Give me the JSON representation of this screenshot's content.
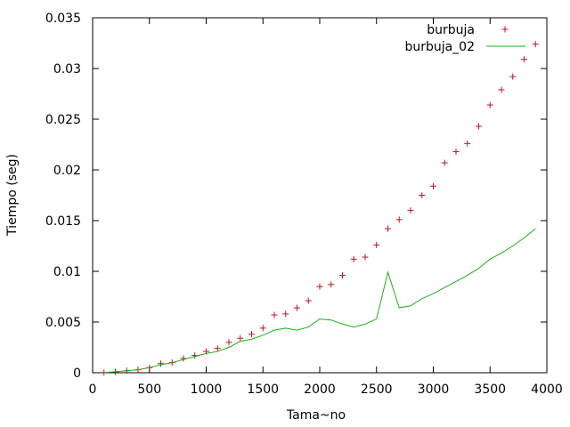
{
  "chart_data": {
    "type": "scatter",
    "xlabel": "Tama~no",
    "ylabel": "Tiempo (seg)",
    "xlim": [
      0,
      4000
    ],
    "ylim": [
      0,
      0.035
    ],
    "xticks": [
      0,
      500,
      1000,
      1500,
      2000,
      2500,
      3000,
      3500,
      4000
    ],
    "xtick_labels": [
      "0",
      "500",
      "1000",
      "1500",
      "2000",
      "2500",
      "3000",
      "3500",
      "4000"
    ],
    "yticks": [
      0,
      0.005,
      0.01,
      0.015,
      0.02,
      0.025,
      0.03,
      0.035
    ],
    "ytick_labels": [
      "0",
      "0.005",
      "0.01",
      "0.015",
      "0.02",
      "0.025",
      "0.03",
      "0.035"
    ],
    "grid": false,
    "legend_position": "top-right",
    "series": [
      {
        "name": "burbuja",
        "style": "points",
        "marker": "+",
        "color": "#c0141c",
        "x": [
          100,
          200,
          300,
          400,
          500,
          600,
          700,
          800,
          900,
          1000,
          1100,
          1200,
          1300,
          1400,
          1500,
          1600,
          1700,
          1800,
          1900,
          2000,
          2100,
          2200,
          2300,
          2400,
          2500,
          2600,
          2700,
          2800,
          2900,
          3000,
          3100,
          3200,
          3300,
          3400,
          3500,
          3600,
          3700,
          3800,
          3900
        ],
        "y": [
          2e-05,
          9e-05,
          0.0002,
          0.0003,
          0.0005,
          0.0009,
          0.001,
          0.0014,
          0.0017,
          0.0021,
          0.0024,
          0.003,
          0.0034,
          0.0038,
          0.0044,
          0.0057,
          0.0058,
          0.0064,
          0.0071,
          0.0085,
          0.0087,
          0.0096,
          0.0112,
          0.0114,
          0.0126,
          0.0142,
          0.0151,
          0.016,
          0.0175,
          0.0184,
          0.0207,
          0.0218,
          0.0226,
          0.0243,
          0.0264,
          0.0279,
          0.0292,
          0.0309,
          0.0324
        ]
      },
      {
        "name": "burbuja_02",
        "style": "line",
        "color": "#1bb01b",
        "x": [
          100,
          200,
          300,
          400,
          500,
          600,
          700,
          800,
          900,
          1000,
          1100,
          1200,
          1300,
          1400,
          1500,
          1600,
          1700,
          1800,
          1900,
          2000,
          2100,
          2200,
          2300,
          2400,
          2500,
          2600,
          2700,
          2800,
          2900,
          3000,
          3100,
          3200,
          3300,
          3400,
          3500,
          3600,
          3700,
          3800,
          3900
        ],
        "y": [
          2e-05,
          0.0001,
          0.0002,
          0.0003,
          0.0005,
          0.0008,
          0.001,
          0.0013,
          0.0016,
          0.0019,
          0.0021,
          0.0025,
          0.0031,
          0.0033,
          0.0037,
          0.0042,
          0.0044,
          0.0042,
          0.0045,
          0.0053,
          0.0052,
          0.0048,
          0.0045,
          0.0048,
          0.0053,
          0.0099,
          0.0064,
          0.0066,
          0.0073,
          0.0078,
          0.0084,
          0.009,
          0.0096,
          0.0103,
          0.0112,
          0.0118,
          0.0125,
          0.0133,
          0.0142
        ]
      }
    ]
  }
}
